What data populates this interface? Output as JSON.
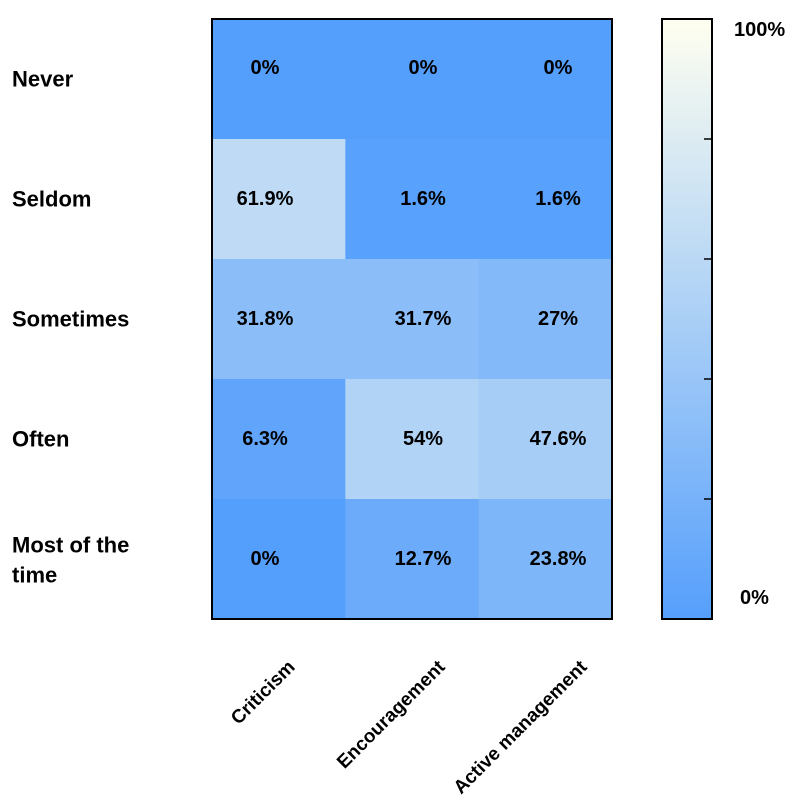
{
  "chart_data": {
    "type": "heatmap",
    "rows": [
      "Never",
      "Seldom",
      "Sometimes",
      "Often",
      "Most of the time"
    ],
    "columns": [
      "Criticism",
      "Encouragement",
      "Active management"
    ],
    "values": [
      [
        0,
        0,
        0
      ],
      [
        61.9,
        1.6,
        1.6
      ],
      [
        31.8,
        31.7,
        27
      ],
      [
        6.3,
        54,
        47.6
      ],
      [
        0,
        12.7,
        23.8
      ]
    ],
    "cell_labels": [
      [
        "0%",
        "0%",
        "0%"
      ],
      [
        "61.9%",
        "1.6%",
        "1.6%"
      ],
      [
        "31.8%",
        "31.7%",
        "27%"
      ],
      [
        "6.3%",
        "54%",
        "47.6%"
      ],
      [
        "0%",
        "12.7%",
        "23.8%"
      ]
    ],
    "colorbar": {
      "min": 0,
      "max": 100,
      "min_label": "0%",
      "max_label": "100%",
      "ticks": [
        20,
        40,
        60,
        80
      ]
    },
    "colors": {
      "low": "#559ffc",
      "high": "#fffff0",
      "border": "#000000",
      "text": "#000000"
    },
    "title": "",
    "xlabel": "",
    "ylabel": ""
  }
}
